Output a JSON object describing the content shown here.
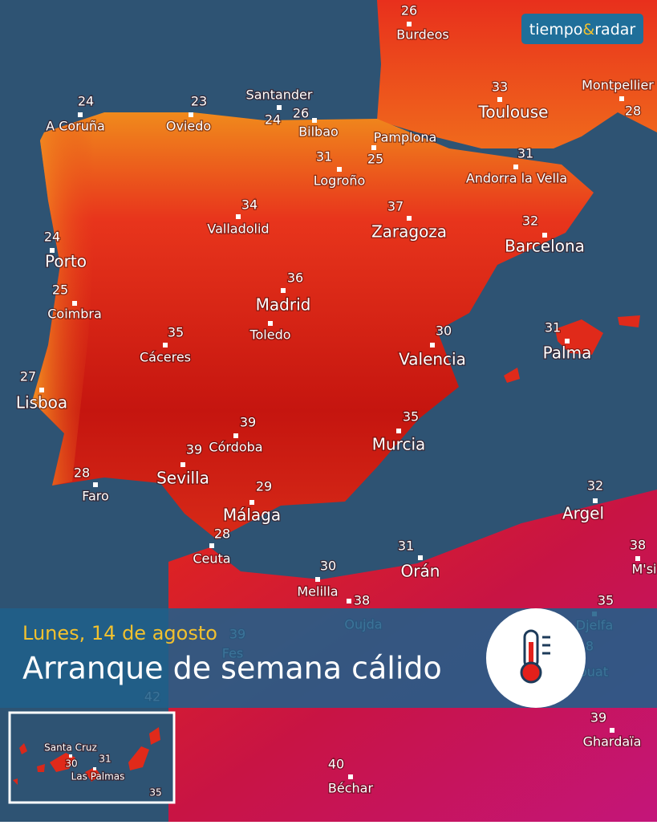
{
  "brand": {
    "part1": "tiempo",
    "symbol": "&",
    "part2": "radar"
  },
  "banner": {
    "date": "Lunes, 14 de agosto",
    "headline": "Arranque de semana cálido"
  },
  "cities": [
    {
      "name": "Burdeos",
      "temp": 26
    },
    {
      "name": "A Coruña",
      "temp": 24
    },
    {
      "name": "Oviedo",
      "temp": 23
    },
    {
      "name": "Santander",
      "temp": 24
    },
    {
      "name": "Bilbao",
      "temp": 26
    },
    {
      "name": "Pamplona",
      "temp": 25
    },
    {
      "name": "Logroño",
      "temp": 31
    },
    {
      "name": "Toulouse",
      "temp": 33
    },
    {
      "name": "Montpellier",
      "temp": 28
    },
    {
      "name": "Andorra la Vella",
      "temp": 31
    },
    {
      "name": "Valladolid",
      "temp": 34
    },
    {
      "name": "Zaragoza",
      "temp": 37
    },
    {
      "name": "Barcelona",
      "temp": 32
    },
    {
      "name": "Porto",
      "temp": 24
    },
    {
      "name": "Coimbra",
      "temp": 25
    },
    {
      "name": "Madrid",
      "temp": 36
    },
    {
      "name": "Toledo"
    },
    {
      "name": "Cáceres",
      "temp": 35
    },
    {
      "name": "Valencia",
      "temp": 30
    },
    {
      "name": "Palma",
      "temp": 31
    },
    {
      "name": "Lisboa",
      "temp": 27
    },
    {
      "name": "Córdoba",
      "temp": 39
    },
    {
      "name": "Sevilla",
      "temp": 39
    },
    {
      "name": "Murcia",
      "temp": 35
    },
    {
      "name": "Faro",
      "temp": 28
    },
    {
      "name": "Málaga",
      "temp": 29
    },
    {
      "name": "Argel",
      "temp": 32
    },
    {
      "name": "Ceuta",
      "temp": 28
    },
    {
      "name": "Orán",
      "temp": 31
    },
    {
      "name": "M'si",
      "temp": 38
    },
    {
      "name": "Melilla",
      "temp": 30
    },
    {
      "name": "Oujda",
      "temp": 38
    },
    {
      "name": "Djelfa",
      "temp": 35
    },
    {
      "name": "Fes",
      "temp": 39
    },
    {
      "name": "ouat",
      "temp": 8
    },
    {
      "temp": 42
    },
    {
      "name": "Ghardaïa",
      "temp": 39
    },
    {
      "name": "Béchar",
      "temp": 40
    }
  ],
  "inset": {
    "cities": [
      {
        "name": "Santa Cruz",
        "temp": 30
      },
      {
        "name": "Las Palmas",
        "temp": 31
      },
      {
        "temp": 35
      }
    ]
  }
}
